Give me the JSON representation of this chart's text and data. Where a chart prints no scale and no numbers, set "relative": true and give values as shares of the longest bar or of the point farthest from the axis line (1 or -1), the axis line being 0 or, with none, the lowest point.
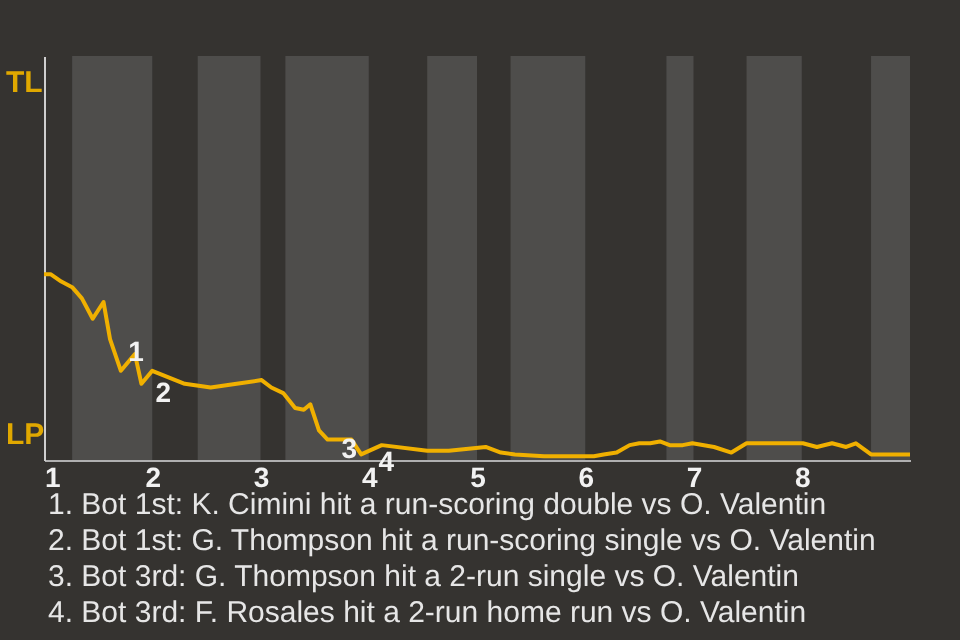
{
  "chart_data": {
    "type": "line",
    "relative": true,
    "series": [
      {
        "color": "#f0b000",
        "x": [
          1,
          1.06,
          1.16,
          1.26,
          1.35,
          1.45,
          1.55,
          1.61,
          1.71,
          1.84,
          1.9,
          2,
          2.3,
          2.54,
          2.78,
          3.01,
          3.1,
          3.21,
          3.32,
          3.4,
          3.46,
          3.54,
          3.62,
          3.84,
          3.93,
          4.12,
          4.54,
          4.74,
          5.08,
          5.22,
          5.35,
          5.62,
          6.08,
          6.17,
          6.29,
          6.41,
          6.5,
          6.6,
          6.69,
          6.78,
          6.9,
          6.99,
          7.19,
          7.35,
          7.49,
          7.75,
          8.01,
          8.14,
          8.28,
          8.41,
          8.5,
          8.64,
          9
        ],
        "values": [
          1,
          1,
          0.96,
          0.93,
          0.87,
          0.76,
          0.85,
          0.65,
          0.48,
          0.57,
          0.41,
          0.48,
          0.41,
          0.39,
          0.41,
          0.43,
          0.39,
          0.36,
          0.28,
          0.27,
          0.3,
          0.16,
          0.11,
          0.11,
          0.03,
          0.08,
          0.05,
          0.05,
          0.07,
          0.04,
          0.03,
          0.02,
          0.02,
          0.03,
          0.04,
          0.08,
          0.09,
          0.09,
          0.1,
          0.08,
          0.08,
          0.09,
          0.07,
          0.04,
          0.09,
          0.09,
          0.09,
          0.07,
          0.09,
          0.07,
          0.09,
          0.03,
          0.03
        ]
      }
    ],
    "xlim": [
      1,
      9
    ],
    "xticks": [
      1,
      2,
      3,
      4,
      5,
      6,
      7,
      8
    ],
    "bands": [
      {
        "axis": "x",
        "from": 1.26,
        "to": 2,
        "color": "#4e4d4b"
      },
      {
        "axis": "x",
        "from": 2.42,
        "to": 3,
        "color": "#4e4d4b"
      },
      {
        "axis": "x",
        "from": 3.23,
        "to": 4,
        "color": "#4e4d4b"
      },
      {
        "axis": "x",
        "from": 4.54,
        "to": 5,
        "color": "#4e4d4b"
      },
      {
        "axis": "x",
        "from": 5.31,
        "to": 6,
        "color": "#4e4d4b"
      },
      {
        "axis": "x",
        "from": 6.75,
        "to": 7,
        "color": "#4e4d4b"
      },
      {
        "axis": "x",
        "from": 7.49,
        "to": 8,
        "color": "#4e4d4b"
      },
      {
        "axis": "x",
        "from": 8.64,
        "to": 9,
        "color": "#4e4d4b"
      }
    ],
    "annotations": [
      "TL",
      "LP",
      {
        "text": "1",
        "x": 1.65,
        "y": 0.63
      },
      {
        "text": "2",
        "x": 1.9,
        "y": 0.41
      },
      {
        "text": "3",
        "x": 3.62,
        "y": 0.11
      },
      {
        "text": "4",
        "x": 3.96,
        "y": 0.04
      },
      "1. Bot 1st: K. Cimini hit a run-scoring double vs O. Valentin",
      "2. Bot 1st: G. Thompson hit a run-scoring single vs O. Valentin",
      "3. Bot 3rd: G. Thompson hit a 2-run single vs O. Valentin",
      "4. Bot 3rd: F. Rosales hit a 2-run home run vs O. Valentin"
    ]
  }
}
